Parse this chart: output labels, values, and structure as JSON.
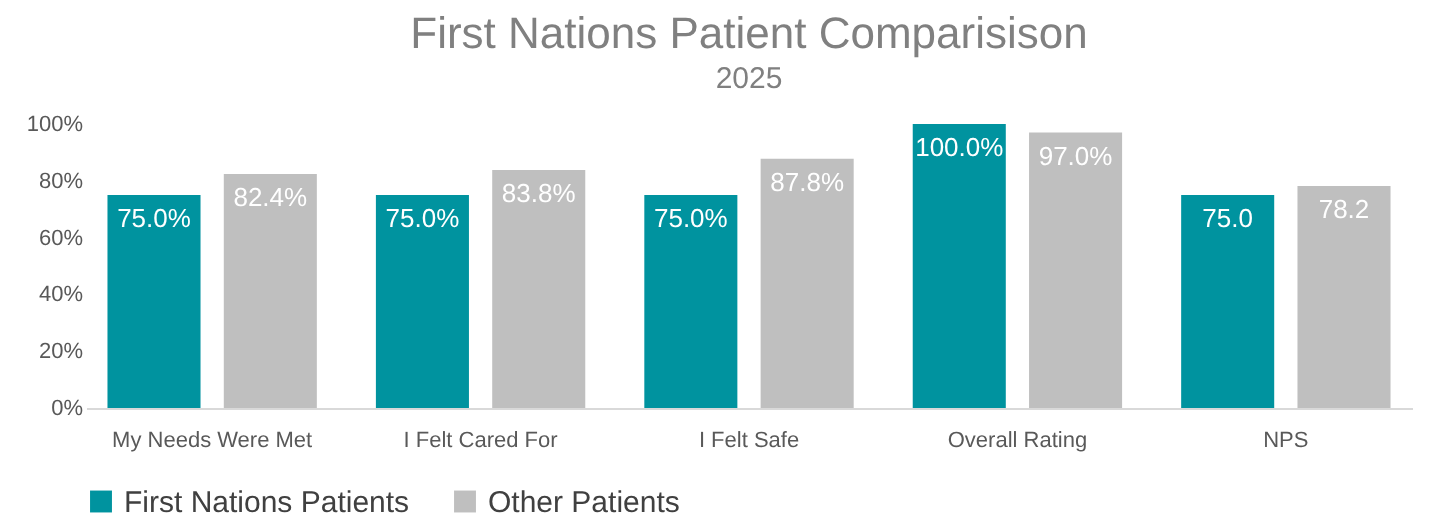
{
  "chart_data": {
    "type": "bar",
    "title": "First Nations Patient Comparisison",
    "subtitle": "2025",
    "categories": [
      "My Needs Were Met",
      "I Felt Cared For",
      "I Felt Safe",
      "Overall Rating",
      "NPS"
    ],
    "series": [
      {
        "name": "First Nations Patients",
        "color": "#00939f",
        "values": [
          75.0,
          75.0,
          75.0,
          100.0,
          75.0
        ],
        "value_labels": [
          "75.0%",
          "75.0%",
          "75.0%",
          "100.0%",
          "75.0"
        ]
      },
      {
        "name": "Other Patients",
        "color": "#bfbfbf",
        "values": [
          82.4,
          83.8,
          87.8,
          97.0,
          78.2
        ],
        "value_labels": [
          "82.4%",
          "83.8%",
          "87.8%",
          "97.0%",
          "78.2"
        ]
      }
    ],
    "ylim": [
      0,
      100
    ],
    "yticks": [
      {
        "value": 0,
        "label": "0%"
      },
      {
        "value": 20,
        "label": "20%"
      },
      {
        "value": 40,
        "label": "40%"
      },
      {
        "value": 60,
        "label": "60%"
      },
      {
        "value": 80,
        "label": "80%"
      },
      {
        "value": 100,
        "label": "100%"
      }
    ],
    "grid": false,
    "legend": "bottom"
  }
}
